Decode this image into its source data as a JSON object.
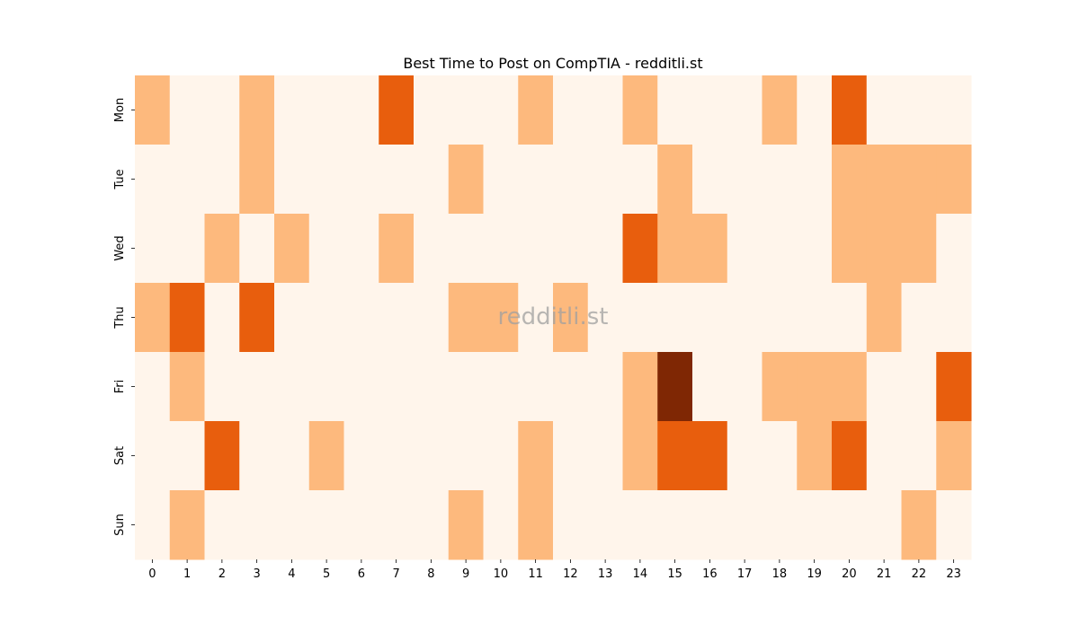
{
  "chart_data": {
    "type": "heatmap",
    "title": "Best Time to Post on CompTIA - redditli.st",
    "watermark": "redditli.st",
    "xlabel": "",
    "ylabel": "",
    "x_categories": [
      "0",
      "1",
      "2",
      "3",
      "4",
      "5",
      "6",
      "7",
      "8",
      "9",
      "10",
      "11",
      "12",
      "13",
      "14",
      "15",
      "16",
      "17",
      "18",
      "19",
      "20",
      "21",
      "22",
      "23"
    ],
    "y_categories": [
      "Mon",
      "Tue",
      "Wed",
      "Thu",
      "Fri",
      "Sat",
      "Sun"
    ],
    "values": [
      [
        1,
        0,
        0,
        1,
        0,
        0,
        0,
        2,
        0,
        0,
        0,
        1,
        0,
        0,
        1,
        0,
        0,
        0,
        1,
        0,
        2,
        0,
        0,
        0
      ],
      [
        0,
        0,
        0,
        1,
        0,
        0,
        0,
        0,
        0,
        1,
        0,
        0,
        0,
        0,
        0,
        1,
        0,
        0,
        0,
        0,
        1,
        1,
        1,
        1
      ],
      [
        0,
        0,
        1,
        0,
        1,
        0,
        0,
        1,
        0,
        0,
        0,
        0,
        0,
        0,
        2,
        1,
        1,
        0,
        0,
        0,
        1,
        1,
        1,
        0
      ],
      [
        1,
        2,
        0,
        2,
        0,
        0,
        0,
        0,
        0,
        1,
        1,
        0,
        1,
        0,
        0,
        0,
        0,
        0,
        0,
        0,
        0,
        1,
        0,
        0
      ],
      [
        0,
        1,
        0,
        0,
        0,
        0,
        0,
        0,
        0,
        0,
        0,
        0,
        0,
        0,
        1,
        3,
        0,
        0,
        1,
        1,
        1,
        0,
        0,
        2
      ],
      [
        0,
        0,
        2,
        0,
        0,
        1,
        0,
        0,
        0,
        0,
        0,
        1,
        0,
        0,
        1,
        2,
        2,
        0,
        0,
        1,
        2,
        0,
        0,
        1
      ],
      [
        0,
        1,
        0,
        0,
        0,
        0,
        0,
        0,
        0,
        1,
        0,
        1,
        0,
        0,
        0,
        0,
        0,
        0,
        0,
        0,
        0,
        0,
        1,
        0
      ]
    ],
    "vmin": 0,
    "vmax": 3,
    "colormap": [
      "#fff5eb",
      "#fdb97d",
      "#e85e0d",
      "#7f2704"
    ],
    "colorbar": false,
    "grid": false
  }
}
